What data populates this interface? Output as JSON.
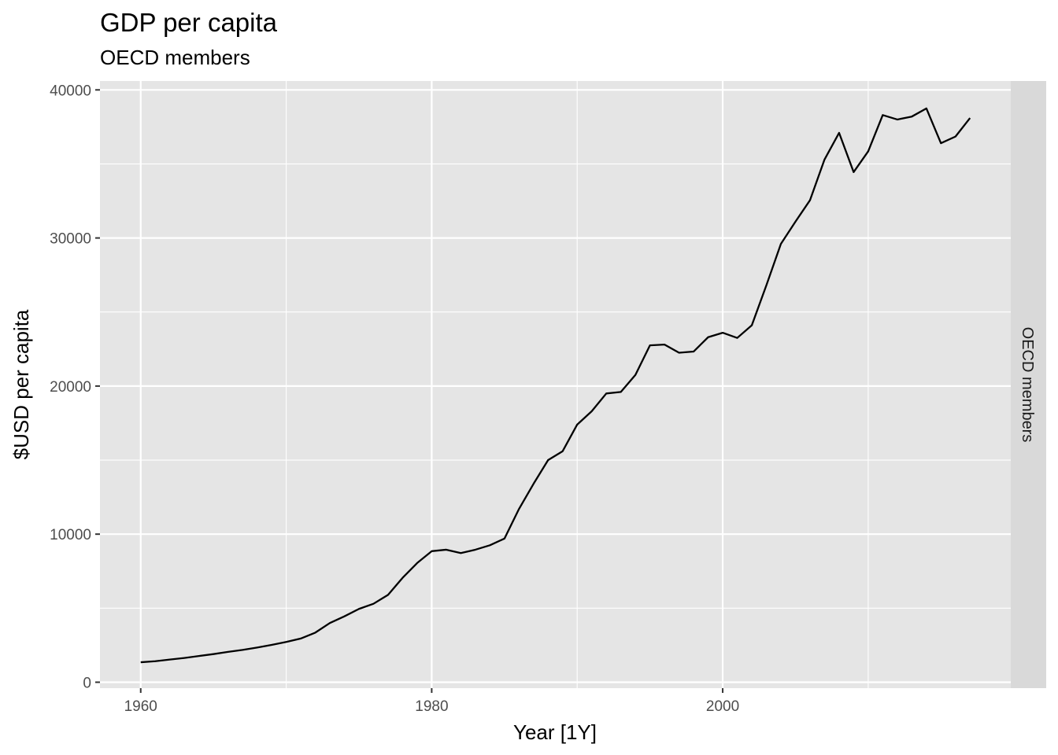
{
  "chart_data": {
    "type": "line",
    "title": "GDP per capita",
    "subtitle": "OECD members",
    "xlabel": "Year [1Y]",
    "ylabel": "$USD per capita",
    "facet_label": "OECD members",
    "xlim": [
      1957.2,
      2019.8
    ],
    "ylim": [
      -400,
      40600
    ],
    "x_ticks": [
      1960,
      1980,
      2000
    ],
    "x_minor_ticks": [
      1970,
      1990,
      2010
    ],
    "y_ticks": [
      0,
      10000,
      20000,
      30000,
      40000
    ],
    "y_minor_ticks": [
      5000,
      15000,
      25000,
      35000
    ],
    "grid": true,
    "colors": {
      "panel_bg": "#e5e5e5",
      "grid": "#ffffff",
      "line": "#000000",
      "strip_bg": "#d9d9d9"
    },
    "series": [
      {
        "x": [
          1960,
          1961,
          1962,
          1963,
          1964,
          1965,
          1966,
          1967,
          1968,
          1969,
          1970,
          1971,
          1972,
          1973,
          1974,
          1975,
          1976,
          1977,
          1978,
          1979,
          1980,
          1981,
          1982,
          1983,
          1984,
          1985,
          1986,
          1987,
          1988,
          1989,
          1990,
          1991,
          1992,
          1993,
          1994,
          1995,
          1996,
          1997,
          1998,
          1999,
          2000,
          2001,
          2002,
          2003,
          2004,
          2005,
          2006,
          2007,
          2008,
          2009,
          2010,
          2011,
          2012,
          2013,
          2014,
          2015,
          2016,
          2017
        ],
        "values": [
          1350,
          1420,
          1530,
          1640,
          1770,
          1900,
          2050,
          2180,
          2340,
          2520,
          2720,
          2950,
          3350,
          4000,
          4450,
          4950,
          5300,
          5900,
          7050,
          8050,
          8850,
          8950,
          8720,
          8950,
          9250,
          9700,
          11700,
          13400,
          15000,
          15600,
          17400,
          18300,
          19500,
          19600,
          20750,
          22750,
          22800,
          22250,
          22330,
          23300,
          23600,
          23250,
          24100,
          26800,
          29600,
          31100,
          32550,
          35300,
          37100,
          34450,
          35850,
          38300,
          38000,
          38200,
          38750,
          36400,
          36850,
          38100
        ]
      }
    ]
  }
}
